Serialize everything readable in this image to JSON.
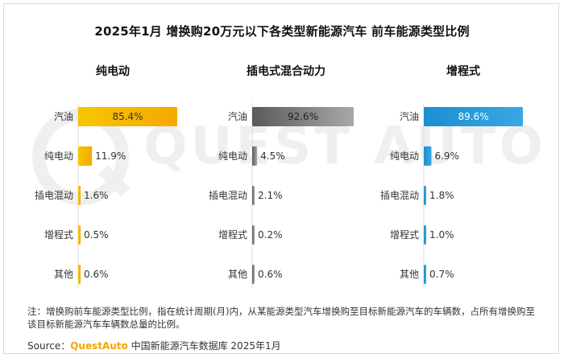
{
  "title": "2025年1月 增换购20万元以下各类型新能源汽车 前车能源类型比例",
  "watermark": "QUEST AUTO",
  "chart_data": [
    {
      "type": "bar",
      "orientation": "horizontal",
      "title": "纯电动",
      "categories": [
        "汽油",
        "纯电动",
        "插电混动",
        "增程式",
        "其他"
      ],
      "values": [
        85.4,
        11.9,
        1.6,
        0.5,
        0.6
      ],
      "value_labels": [
        "85.4%",
        "11.9%",
        "1.6%",
        "0.5%",
        "0.6%"
      ],
      "unit": "%",
      "color": "#f5b700"
    },
    {
      "type": "bar",
      "orientation": "horizontal",
      "title": "插电式混合动力",
      "categories": [
        "汽油",
        "纯电动",
        "插电混动",
        "增程式",
        "其他"
      ],
      "values": [
        92.6,
        4.5,
        2.1,
        0.2,
        0.6
      ],
      "value_labels": [
        "92.6%",
        "4.5%",
        "2.1%",
        "0.2%",
        "0.6%"
      ],
      "unit": "%",
      "color": "#7f7f7f"
    },
    {
      "type": "bar",
      "orientation": "horizontal",
      "title": "增程式",
      "categories": [
        "汽油",
        "纯电动",
        "插电混动",
        "增程式",
        "其他"
      ],
      "values": [
        89.6,
        6.9,
        1.8,
        1.0,
        0.7
      ],
      "value_labels": [
        "89.6%",
        "6.9%",
        "1.8%",
        "1.0%",
        "0.7%"
      ],
      "unit": "%",
      "color": "#2196d3"
    }
  ],
  "note": "注：增换购前车能源类型比例，指在统计周期(月)内，从某能源类型汽车增换购至目标新能源汽车的车辆数，占所有增换购至该目标新能源汽车车辆数总量的比例。",
  "source": {
    "prefix": "Source：",
    "brand": "QuestAuto",
    "rest": " 中国新能源汽车数据库 2025年1月"
  }
}
